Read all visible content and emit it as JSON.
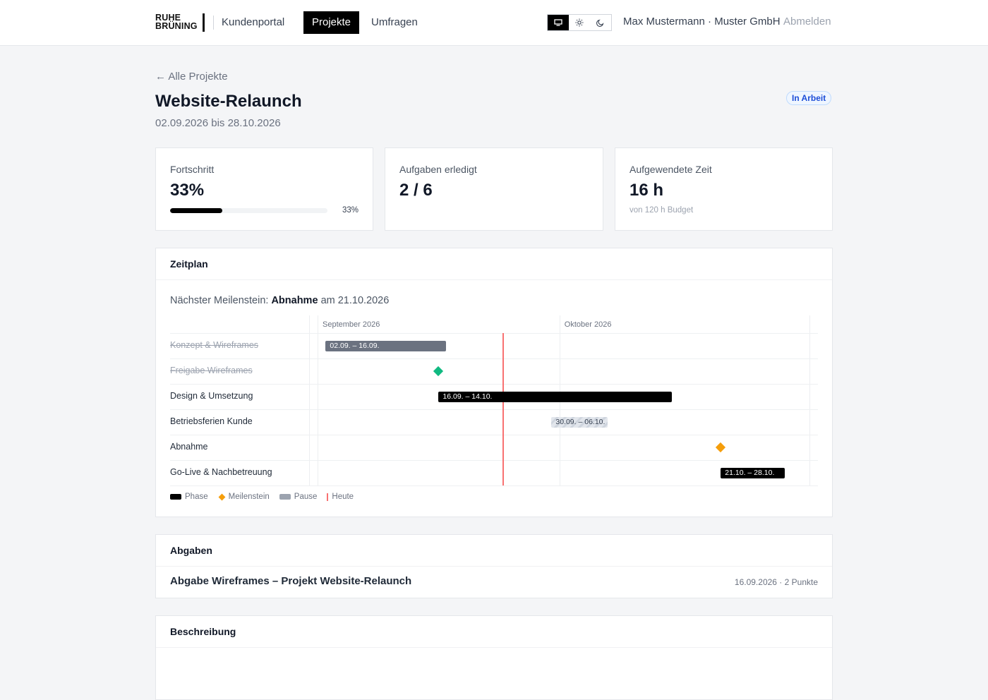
{
  "header": {
    "logo_line1": "RUHE",
    "logo_line2": "BRÜNING",
    "nav": [
      {
        "label": "Kundenportal"
      },
      {
        "label": "Projekte"
      },
      {
        "label": "Umfragen"
      }
    ],
    "theme_modes": [
      "monitor-icon",
      "sun-icon",
      "moon-icon"
    ],
    "user": "Max Mustermann · Muster GmbH",
    "logout": "Abmelden"
  },
  "page": {
    "back_link": "← Alle Projekte",
    "title": "Website-Relaunch",
    "dates": "02.09.2026 bis 28.10.2026",
    "status": "In Arbeit"
  },
  "stats": {
    "progress": {
      "label": "Fortschritt",
      "value": "33%",
      "fraction": 0.33,
      "pct_text": "33%"
    },
    "tasks": {
      "label": "Aufgaben erledigt",
      "value": "2 / 6"
    },
    "time": {
      "label": "Aufgewendete Zeit",
      "value": "16 h",
      "sub": "von 120 h Budget"
    }
  },
  "schedule": {
    "title": "Zeitplan",
    "milestone_prefix": "Nächster Meilenstein:",
    "milestone_name": "Abnahme",
    "milestone_suffix": "am 21.10.2026",
    "months": [
      "September 2026",
      "Oktober 2026"
    ],
    "today": "2026-09-24",
    "rows": [
      {
        "label": "Konzept & Wireframes",
        "type": "phase",
        "start": "2026-09-02",
        "end": "2026-09-16",
        "text": "02.09. – 16.09.",
        "done": true
      },
      {
        "label": "Freigabe Wireframes",
        "type": "milestone",
        "date": "2026-09-16",
        "done": true,
        "color": "#10b981"
      },
      {
        "label": "Design & Umsetzung",
        "type": "phase",
        "start": "2026-09-16",
        "end": "2026-10-14",
        "text": "16.09. – 14.10.",
        "done": false
      },
      {
        "label": "Betriebsferien Kunde",
        "type": "pause",
        "start": "2026-09-30",
        "end": "2026-10-06",
        "text": "30.09. – 06.10.",
        "done": false
      },
      {
        "label": "Abnahme",
        "type": "milestone",
        "date": "2026-10-21",
        "done": false,
        "color": "#f59e0b"
      },
      {
        "label": "Go-Live & Nachbetreuung",
        "type": "phase",
        "start": "2026-10-21",
        "end": "2026-10-28",
        "text": "21.10. – 28.10.",
        "done": false
      }
    ],
    "legend": {
      "phase": "Phase",
      "milestone": "Meilenstein",
      "pause": "Pause",
      "today": "Heute"
    },
    "colors": {
      "phase": "#000000",
      "milestone": "#f59e0b",
      "pause": "#9ca3af",
      "today": "#f87171"
    }
  },
  "deliverables": {
    "title": "Abgaben",
    "items": [
      {
        "title": "Abgabe Wireframes – Projekt Website-Relaunch",
        "meta": "16.09.2026 · 2 Punkte"
      }
    ]
  },
  "description": {
    "title": "Beschreibung"
  }
}
